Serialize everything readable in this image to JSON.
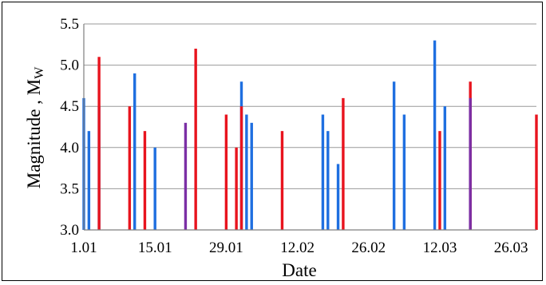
{
  "chart_data": {
    "type": "bar",
    "xlabel": "Date",
    "ylabel": "Magnitude ,  M",
    "ylabel_subscript": "W",
    "ylim": [
      3.0,
      5.5
    ],
    "yticks": [
      "3.0",
      "3.5",
      "4.0",
      "4.5",
      "5.0",
      "5.5"
    ],
    "xlim": [
      "01.01",
      "31.03"
    ],
    "xticks": [
      {
        "date": "01.01",
        "label": "1.01"
      },
      {
        "date": "15.01",
        "label": "15.01"
      },
      {
        "date": "29.01",
        "label": "29.01"
      },
      {
        "date": "12.02",
        "label": "12.02"
      },
      {
        "date": "26.02",
        "label": "26.02"
      },
      {
        "date": "12.03",
        "label": "12.03"
      },
      {
        "date": "26.03",
        "label": "26.03"
      }
    ],
    "grid": {
      "horizontal": true,
      "vertical": false
    },
    "colors": {
      "blue": "#1f6fe0",
      "red": "#e8141e",
      "purple": "#7b2fa5"
    },
    "series": [
      {
        "color": "blue",
        "points": [
          {
            "date": "01.01",
            "value": 4.6
          },
          {
            "date": "02.01",
            "value": 4.2
          },
          {
            "date": "04.01",
            "value": 4.5
          },
          {
            "date": "11.01",
            "value": 4.9
          },
          {
            "date": "15.01",
            "value": 4.0
          },
          {
            "date": "01.02",
            "value": 4.8
          },
          {
            "date": "02.02",
            "value": 4.4
          },
          {
            "date": "03.02",
            "value": 4.3
          },
          {
            "date": "17.02",
            "value": 4.4
          },
          {
            "date": "18.02",
            "value": 4.2
          },
          {
            "date": "20.02",
            "value": 3.8
          },
          {
            "date": "03.03",
            "value": 4.8
          },
          {
            "date": "05.03",
            "value": 4.4
          },
          {
            "date": "11.03",
            "value": 5.3
          },
          {
            "date": "13.03",
            "value": 4.5
          },
          {
            "date": "18.03",
            "value": 4.6
          }
        ]
      },
      {
        "color": "red",
        "points": [
          {
            "date": "04.01",
            "value": 5.1
          },
          {
            "date": "10.01",
            "value": 4.5
          },
          {
            "date": "13.01",
            "value": 4.2
          },
          {
            "date": "23.01",
            "value": 5.2
          },
          {
            "date": "29.01",
            "value": 4.4
          },
          {
            "date": "31.01",
            "value": 4.0
          },
          {
            "date": "01.02",
            "value": 4.5
          },
          {
            "date": "09.02",
            "value": 4.2
          },
          {
            "date": "21.02",
            "value": 4.6
          },
          {
            "date": "12.03",
            "value": 4.2
          },
          {
            "date": "18.03",
            "value": 4.8
          },
          {
            "date": "31.03",
            "value": 4.4
          }
        ]
      },
      {
        "color": "purple",
        "points": [
          {
            "date": "21.01",
            "value": 4.3
          },
          {
            "date": "18.03",
            "value": 4.6
          }
        ]
      }
    ]
  }
}
